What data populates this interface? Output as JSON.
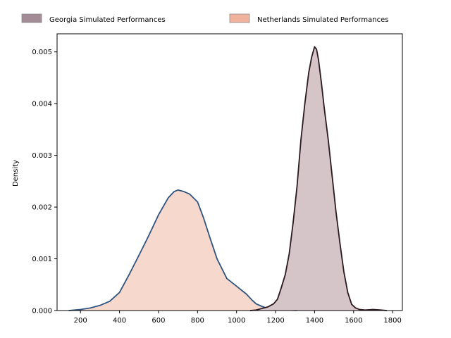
{
  "chart_data": {
    "type": "area",
    "title": "",
    "xlabel": "",
    "ylabel": "Density",
    "xlim": [
      80,
      1850
    ],
    "ylim": [
      0,
      0.00535
    ],
    "xticks": [
      200,
      400,
      600,
      800,
      1000,
      1200,
      1400,
      1600,
      1800
    ],
    "xtick_labels": [
      "200",
      "400",
      "600",
      "800",
      "1000",
      "1200",
      "1400",
      "1600",
      "1800"
    ],
    "yticks": [
      0,
      0.001,
      0.002,
      0.003,
      0.004,
      0.005
    ],
    "ytick_labels": [
      "0.000",
      "0.001",
      "0.002",
      "0.003",
      "0.004",
      "0.005"
    ],
    "grid": false,
    "legend_placement": "top (above plot), horizontal",
    "series": [
      {
        "name": "Georgia Simulated Performances",
        "fill_color": "#d5c4c8",
        "legend_color": "#a38c95",
        "line_color": "#2a1a20",
        "x": [
          1070,
          1100,
          1130,
          1160,
          1190,
          1210,
          1230,
          1250,
          1270,
          1290,
          1310,
          1330,
          1350,
          1370,
          1385,
          1400,
          1410,
          1420,
          1435,
          1450,
          1470,
          1490,
          1510,
          1530,
          1550,
          1570,
          1590,
          1610,
          1630,
          1660,
          1700,
          1740,
          1770
        ],
        "y": [
          0.0,
          1e-05,
          4e-05,
          7e-05,
          0.00013,
          0.00022,
          0.00045,
          0.0007,
          0.0011,
          0.0017,
          0.0024,
          0.0033,
          0.004,
          0.0046,
          0.0049,
          0.0051,
          0.00505,
          0.00485,
          0.0044,
          0.0039,
          0.0033,
          0.0026,
          0.0019,
          0.0013,
          0.00075,
          0.00035,
          0.00012,
          5e-05,
          2e-05,
          1e-05,
          2e-05,
          1e-05,
          0.0
        ]
      },
      {
        "name": "Netherlands Simulated Performances",
        "fill_color": "#f7d8cd",
        "legend_color": "#f1b39d",
        "line_color": "#2d5480",
        "x": [
          140,
          200,
          250,
          300,
          350,
          400,
          450,
          500,
          550,
          600,
          650,
          680,
          700,
          730,
          760,
          800,
          830,
          860,
          900,
          950,
          1000,
          1050,
          1080,
          1100,
          1130,
          1160,
          1200,
          1250,
          1310
        ],
        "y": [
          0.0,
          2e-05,
          5e-05,
          0.0001,
          0.00018,
          0.00035,
          0.0007,
          0.00107,
          0.00145,
          0.00185,
          0.00218,
          0.0023,
          0.00233,
          0.0023,
          0.00225,
          0.0021,
          0.0018,
          0.00145,
          0.001,
          0.00062,
          0.00047,
          0.00032,
          0.0002,
          0.00013,
          8e-05,
          4e-05,
          2e-05,
          1e-05,
          0.0
        ]
      }
    ]
  }
}
